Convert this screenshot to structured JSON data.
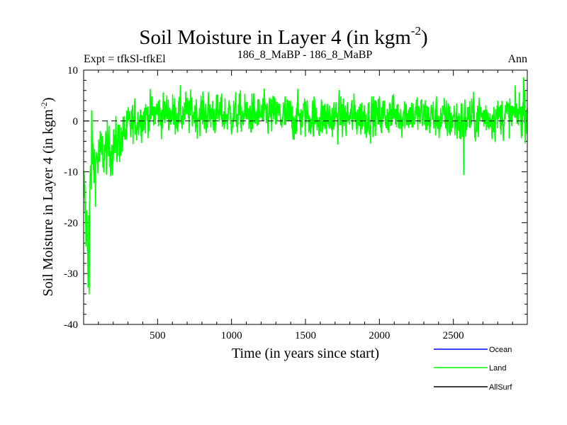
{
  "chart_data": {
    "type": "line",
    "title": "Soil Moisture in Layer 4 (in kgm",
    "title_superscript": "-2",
    "title_close": ")",
    "subtitle_left": "Expt = tfkSl-tfkEl",
    "subtitle_center": "186_8_MaBP - 186_8_MaBP",
    "subtitle_right": "Ann",
    "xlabel": "Time (in years since start)",
    "ylabel": "Soil Moisture in Layer 4 (in kgm",
    "ylabel_superscript": "-2",
    "ylabel_close": ")",
    "xlim": [
      0,
      3000
    ],
    "ylim": [
      -40,
      10
    ],
    "xticks": [
      500,
      1000,
      1500,
      2000,
      2500
    ],
    "xtick_labels": [
      "500",
      "1000",
      "1500",
      "2000",
      "2500"
    ],
    "yticks": [
      -40,
      -30,
      -20,
      -10,
      0,
      10
    ],
    "ytick_labels": [
      "-40",
      "-30",
      "-20",
      "-10",
      "0",
      "10"
    ],
    "reference_line": {
      "y": 0,
      "style": "dashed",
      "color": "#000000"
    },
    "series": [
      {
        "name": "Land",
        "color": "#00ff00",
        "envelope": {
          "x": [
            0,
            15,
            30,
            45,
            60,
            80,
            100,
            130,
            160,
            200,
            250,
            300,
            350,
            400,
            500,
            700,
            1000,
            1300,
            1400,
            1500,
            1650,
            1800,
            2000,
            2200,
            2400,
            2550,
            2600,
            2700,
            2900,
            3000
          ],
          "mean": [
            -12,
            -20,
            -24,
            -14,
            -9,
            -8,
            -7,
            -6.5,
            -6,
            -5,
            -3.5,
            -1.5,
            0,
            1,
            1.5,
            1.5,
            1.2,
            1.2,
            0.5,
            1,
            0.5,
            0.8,
            1,
            1.5,
            0.5,
            0,
            0.5,
            0.8,
            1,
            2
          ],
          "amplitude": [
            4,
            7,
            9,
            7,
            6,
            5.5,
            5,
            4.8,
            4.5,
            4.3,
            4,
            3.8,
            3.6,
            3.5,
            3.5,
            3.5,
            3.5,
            3.5,
            3.8,
            3.5,
            3.8,
            3.5,
            3.5,
            3.5,
            3.5,
            4,
            3.8,
            3.5,
            3.5,
            4
          ]
        },
        "notable_points": [
          {
            "x": 38,
            "y": -34
          },
          {
            "x": 55,
            "y": 2
          },
          {
            "x": 2570,
            "y": -10.5
          },
          {
            "x": 2975,
            "y": 8.5
          }
        ]
      },
      {
        "name": "Ocean",
        "color": "#0000ff",
        "values": []
      },
      {
        "name": "AllSurf",
        "color": "#000000",
        "values": []
      }
    ],
    "legend": {
      "placement": "bottom-right",
      "entries": [
        {
          "label": "Ocean",
          "color": "#0000ff"
        },
        {
          "label": "Land",
          "color": "#00ff00"
        },
        {
          "label": "AllSurf",
          "color": "#000000"
        }
      ]
    }
  }
}
